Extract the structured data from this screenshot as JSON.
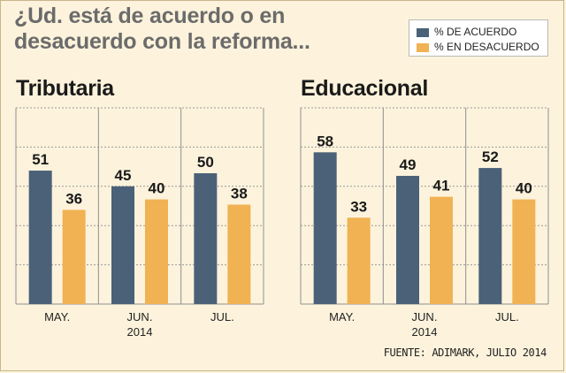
{
  "title_line1": "¿Ud. está de acuerdo o en",
  "title_line2": "desacuerdo con la reforma...",
  "legend": [
    {
      "label": "% DE ACUERDO",
      "color": "#4a6178"
    },
    {
      "label": "% EN DESACUERDO",
      "color": "#f0b253"
    }
  ],
  "source": "FUENTE: ADIMARK, JULIO 2014",
  "colors": {
    "acuerdo": "#4a6178",
    "desacuerdo": "#f0b253",
    "background": "#fdf3dc"
  },
  "chart_data": [
    {
      "type": "bar",
      "title": "Tributaria",
      "categories": [
        "MAY.",
        "JUN. 2014",
        "JUL."
      ],
      "category_lines": [
        [
          "MAY."
        ],
        [
          "JUN.",
          "2014"
        ],
        [
          "JUL."
        ]
      ],
      "series": [
        {
          "name": "% DE ACUERDO",
          "values": [
            51,
            45,
            50
          ]
        },
        {
          "name": "% EN DESACUERDO",
          "values": [
            36,
            40,
            38
          ]
        }
      ],
      "ylim": [
        0,
        75
      ],
      "grid": true
    },
    {
      "type": "bar",
      "title": "Educacional",
      "categories": [
        "MAY.",
        "JUN. 2014",
        "JUL."
      ],
      "category_lines": [
        [
          "MAY."
        ],
        [
          "JUN.",
          "2014"
        ],
        [
          "JUL."
        ]
      ],
      "series": [
        {
          "name": "% DE ACUERDO",
          "values": [
            58,
            49,
            52
          ]
        },
        {
          "name": "% EN DESACUERDO",
          "values": [
            33,
            41,
            40
          ]
        }
      ],
      "ylim": [
        0,
        75
      ],
      "grid": true
    }
  ]
}
